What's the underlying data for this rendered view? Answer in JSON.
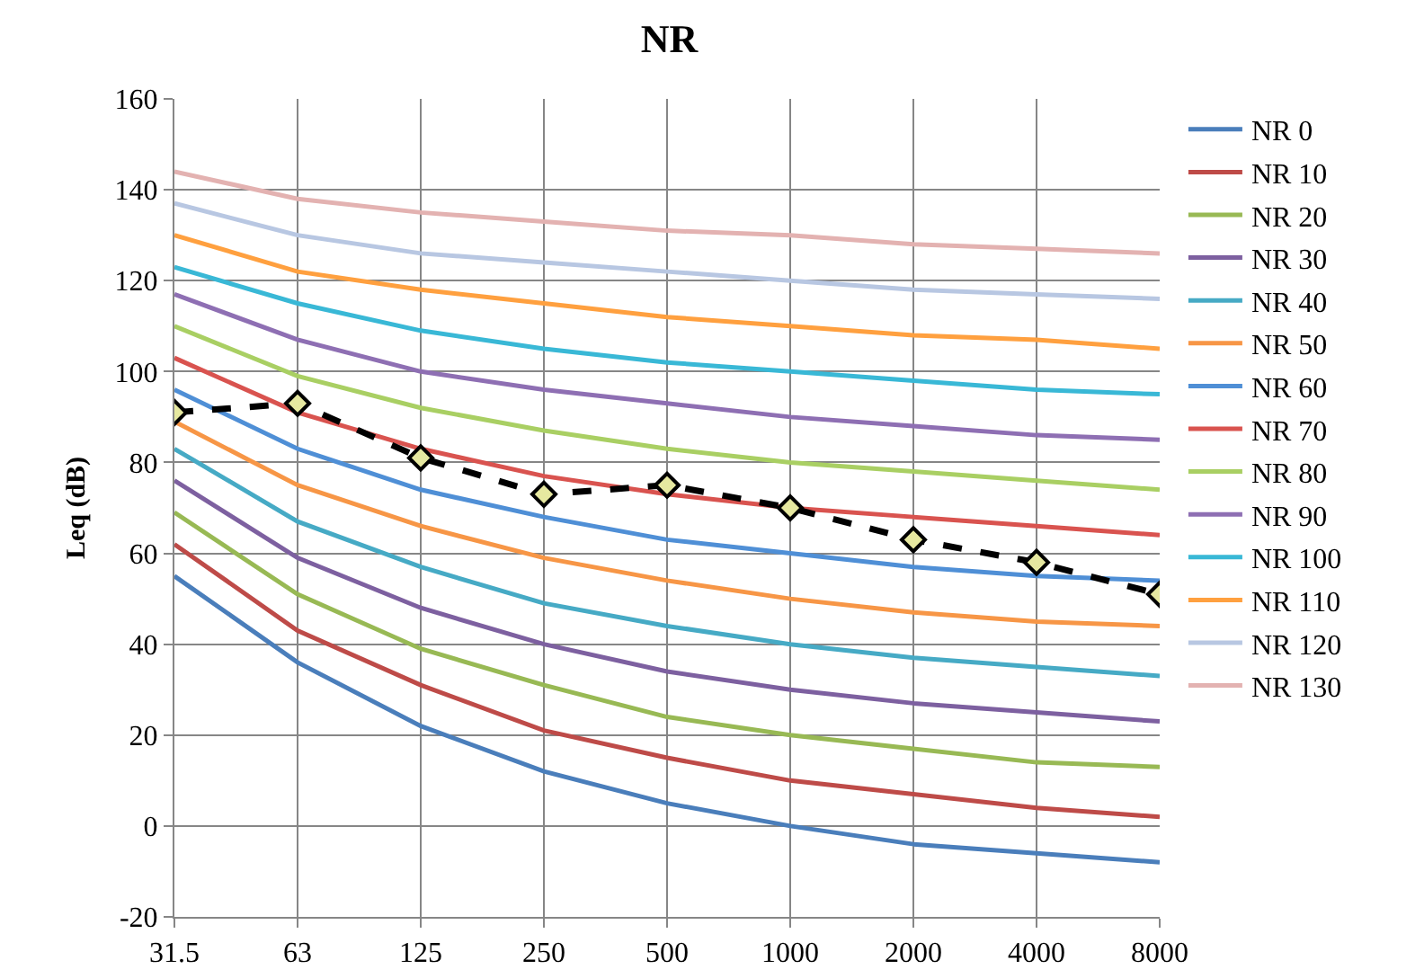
{
  "chart_data": {
    "type": "line",
    "title": "NR",
    "ylabel": "Leq (dB)",
    "categories": [
      "31.5",
      "63",
      "125",
      "250",
      "500",
      "1000",
      "2000",
      "4000",
      "8000"
    ],
    "ylim": [
      -20,
      160
    ],
    "yticks": [
      -20,
      0,
      20,
      40,
      60,
      80,
      100,
      120,
      140,
      160
    ],
    "grid": true,
    "legend": "right",
    "marker": "none",
    "line_style": "solid",
    "series": [
      {
        "name": "NR 0",
        "color": "#4a7ebb",
        "values": [
          55,
          36,
          22,
          12,
          5,
          0,
          -4,
          -6,
          -8
        ]
      },
      {
        "name": "NR 10",
        "color": "#be4b48",
        "values": [
          62,
          43,
          31,
          21,
          15,
          10,
          7,
          4,
          2
        ]
      },
      {
        "name": "NR 20",
        "color": "#98b954",
        "values": [
          69,
          51,
          39,
          31,
          24,
          20,
          17,
          14,
          13
        ]
      },
      {
        "name": "NR 30",
        "color": "#7d60a0",
        "values": [
          76,
          59,
          48,
          40,
          34,
          30,
          27,
          25,
          23
        ]
      },
      {
        "name": "NR 40",
        "color": "#46aac5",
        "values": [
          83,
          67,
          57,
          49,
          44,
          40,
          37,
          35,
          33
        ]
      },
      {
        "name": "NR 50",
        "color": "#f79646",
        "values": [
          89,
          75,
          66,
          59,
          54,
          50,
          47,
          45,
          44
        ]
      },
      {
        "name": "NR 60",
        "color": "#4f8fd6",
        "values": [
          96,
          83,
          74,
          68,
          63,
          60,
          57,
          55,
          54
        ]
      },
      {
        "name": "NR 70",
        "color": "#d9534f",
        "values": [
          103,
          91,
          83,
          77,
          73,
          70,
          68,
          66,
          64
        ]
      },
      {
        "name": "NR 80",
        "color": "#a9cf63",
        "values": [
          110,
          99,
          92,
          87,
          83,
          80,
          78,
          76,
          74
        ]
      },
      {
        "name": "NR 90",
        "color": "#8e6fb3",
        "values": [
          117,
          107,
          100,
          96,
          93,
          90,
          88,
          86,
          85
        ]
      },
      {
        "name": "NR 100",
        "color": "#39b8d6",
        "values": [
          123,
          115,
          109,
          105,
          102,
          100,
          98,
          96,
          95
        ]
      },
      {
        "name": "NR 110",
        "color": "#ffa03f",
        "values": [
          130,
          122,
          118,
          115,
          112,
          110,
          108,
          107,
          105
        ]
      },
      {
        "name": "NR 120",
        "color": "#b8c7e2",
        "values": [
          137,
          130,
          126,
          124,
          122,
          120,
          118,
          117,
          116
        ]
      },
      {
        "name": "NR 130",
        "color": "#e3b2b1",
        "values": [
          144,
          138,
          135,
          133,
          131,
          130,
          128,
          127,
          126
        ]
      },
      {
        "color": "#000000",
        "marker": "diamond",
        "line_style": "dashed",
        "values": [
          91,
          93,
          81,
          73,
          75,
          70,
          63,
          58,
          51
        ]
      }
    ]
  }
}
